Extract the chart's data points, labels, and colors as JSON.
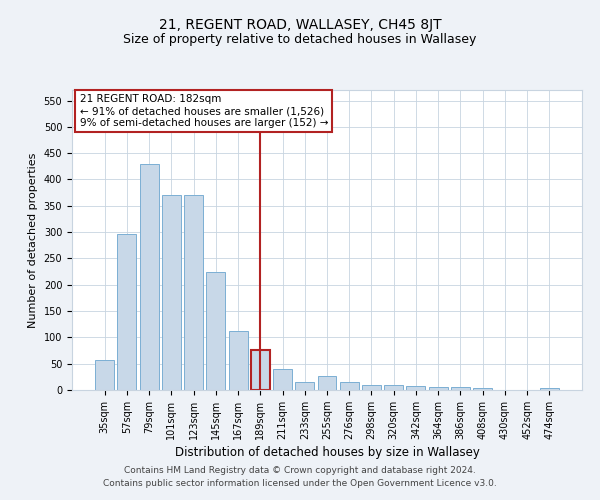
{
  "title": "21, REGENT ROAD, WALLASEY, CH45 8JT",
  "subtitle": "Size of property relative to detached houses in Wallasey",
  "xlabel": "Distribution of detached houses by size in Wallasey",
  "ylabel": "Number of detached properties",
  "categories": [
    "35sqm",
    "57sqm",
    "79sqm",
    "101sqm",
    "123sqm",
    "145sqm",
    "167sqm",
    "189sqm",
    "211sqm",
    "233sqm",
    "255sqm",
    "276sqm",
    "298sqm",
    "320sqm",
    "342sqm",
    "364sqm",
    "386sqm",
    "408sqm",
    "430sqm",
    "452sqm",
    "474sqm"
  ],
  "values": [
    57,
    296,
    430,
    370,
    370,
    225,
    113,
    76,
    40,
    15,
    27,
    15,
    10,
    10,
    7,
    5,
    5,
    4,
    0,
    0,
    4
  ],
  "bar_color": "#c8d8e8",
  "bar_edge_color": "#7bafd4",
  "highlight_index": 7,
  "highlight_bar_edge_color": "#b22222",
  "vline_color": "#b22222",
  "annotation_text": "21 REGENT ROAD: 182sqm\n← 91% of detached houses are smaller (1,526)\n9% of semi-detached houses are larger (152) →",
  "annotation_box_color": "#ffffff",
  "annotation_box_edge_color": "#b22222",
  "ylim": [
    0,
    570
  ],
  "yticks": [
    0,
    50,
    100,
    150,
    200,
    250,
    300,
    350,
    400,
    450,
    500,
    550
  ],
  "footer_text": "Contains HM Land Registry data © Crown copyright and database right 2024.\nContains public sector information licensed under the Open Government Licence v3.0.",
  "background_color": "#eef2f7",
  "plot_background_color": "#ffffff",
  "grid_color": "#c8d4e0",
  "title_fontsize": 10,
  "subtitle_fontsize": 9,
  "xlabel_fontsize": 8.5,
  "ylabel_fontsize": 8,
  "tick_fontsize": 7,
  "annotation_fontsize": 7.5,
  "footer_fontsize": 6.5
}
